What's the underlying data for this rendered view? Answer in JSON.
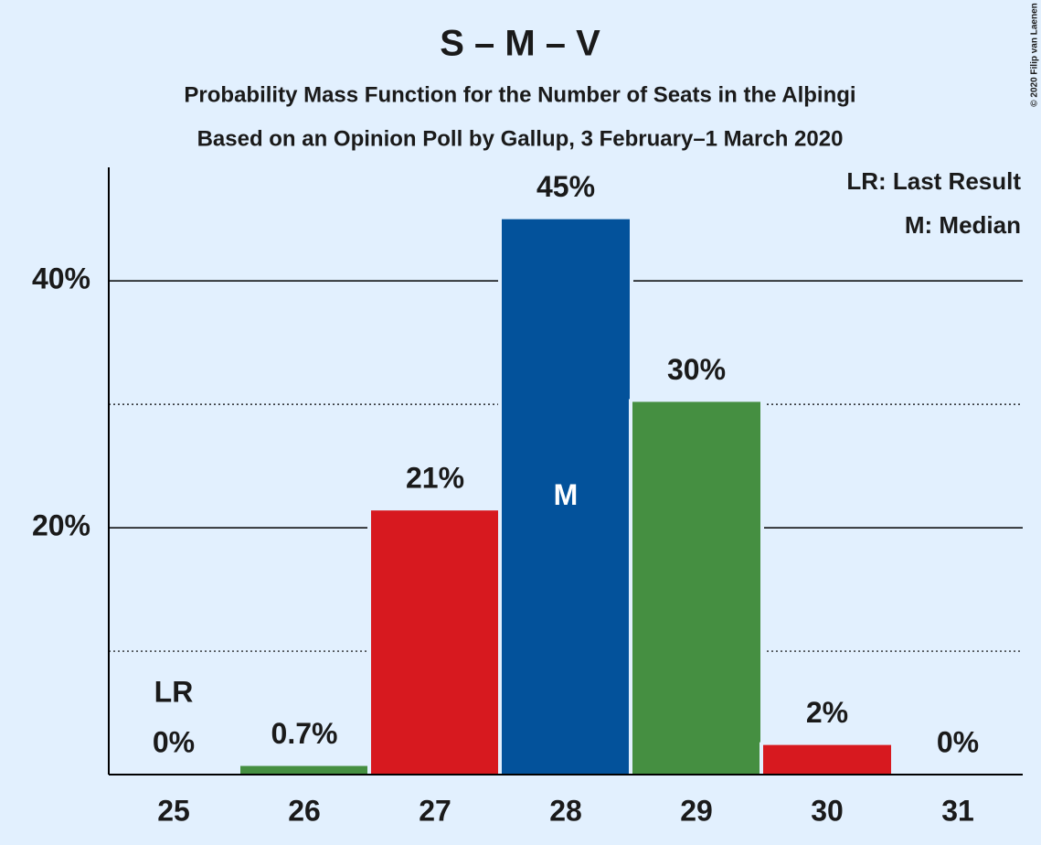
{
  "chart_data": {
    "type": "bar",
    "title": "S – M – V",
    "subtitle": "Probability Mass Function for the Number of Seats in the Alþingi",
    "subtitle2": "Based on an Opinion Poll by Gallup, 3 February–1 March 2020",
    "categories": [
      "25",
      "26",
      "27",
      "28",
      "29",
      "30",
      "31"
    ],
    "values": [
      0,
      0.7,
      21.4,
      45,
      30.2,
      2.4,
      0
    ],
    "value_labels": [
      "0%",
      "0.7%",
      "21%",
      "45%",
      "30%",
      "2%",
      "0%"
    ],
    "colors": [
      "#458f41",
      "#458f41",
      "#d7191f",
      "#03529b",
      "#458f41",
      "#d7191f",
      "#d7191f"
    ],
    "ylim": [
      0,
      49.2
    ],
    "yticks": [
      {
        "value": 20,
        "label": "20%"
      },
      {
        "value": 40,
        "label": "40%"
      }
    ],
    "minor_yticks": [
      10,
      30
    ],
    "grid": true,
    "last_result": "25",
    "last_result_label": "LR",
    "median": "28",
    "median_label": "M",
    "legend": [
      "LR: Last Result",
      "M: Median"
    ],
    "copyright": "© 2020 Filip van Laenen"
  }
}
